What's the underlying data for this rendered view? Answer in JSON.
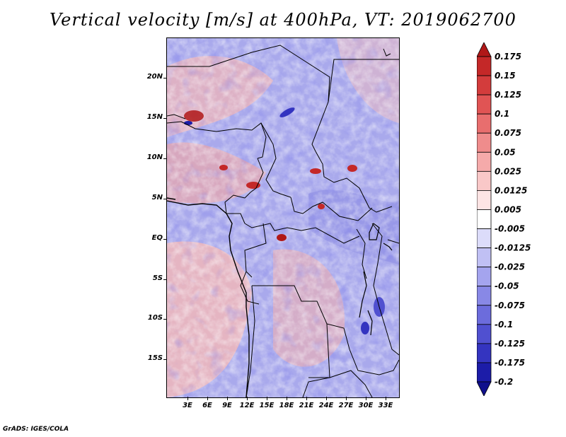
{
  "title": "Vertical velocity [m/s] at 400hPa, VT: 2019062700",
  "credit": "GrADS: IGES/COLA",
  "map": {
    "lat_labels": [
      "20N",
      "15N",
      "10N",
      "5N",
      "EQ",
      "5S",
      "10S",
      "15S"
    ],
    "lon_labels": [
      "3E",
      "6E",
      "9E",
      "12E",
      "15E",
      "18E",
      "21E",
      "24E",
      "27E",
      "30E",
      "33E"
    ],
    "lon_range": [
      0,
      35
    ],
    "lat_range": [
      -20,
      25
    ]
  },
  "colorbar": {
    "levels": [
      "0.175",
      "0.15",
      "0.125",
      "0.1",
      "0.075",
      "0.05",
      "0.025",
      "0.0125",
      "0.005",
      "-0.005",
      "-0.0125",
      "-0.025",
      "-0.05",
      "-0.075",
      "-0.1",
      "-0.125",
      "-0.175",
      "-0.2"
    ],
    "colors": [
      "#b01818",
      "#c42828",
      "#d33c3c",
      "#e05454",
      "#e86e6e",
      "#ef8c8c",
      "#f5aaaa",
      "#f9c8c8",
      "#fde4e4",
      "#ffffff",
      "#dcdcfa",
      "#c0c0f4",
      "#a4a4ee",
      "#8888e6",
      "#6c6cdc",
      "#5050d0",
      "#3434c0",
      "#1c1ca8",
      "#10108c"
    ]
  }
}
